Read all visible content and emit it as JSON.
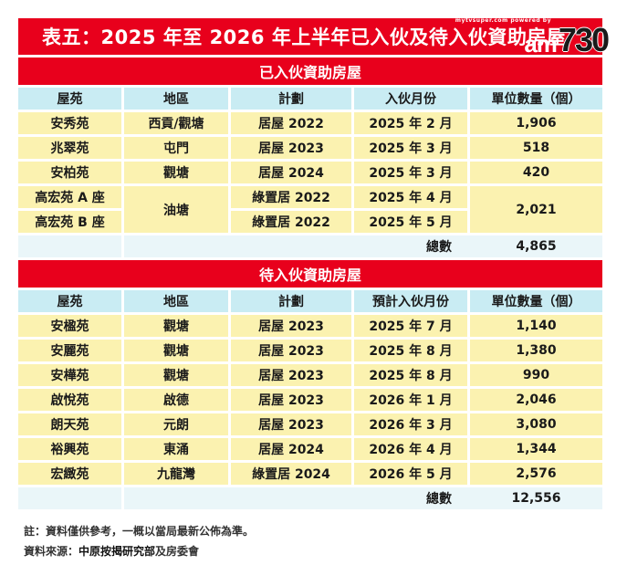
{
  "title": "表五：2025 年至 2026 年上半年已入伙及待入伙資助房屋",
  "logo": {
    "tagline": "mytvsuper.com  powered by",
    "brand_left": "am",
    "brand_right": "730"
  },
  "section1": {
    "heading": "已入伙資助房屋",
    "headers": [
      "屋苑",
      "地區",
      "計劃",
      "入伙月份",
      "單位數量（個）"
    ],
    "rows": [
      {
        "estate": "安秀苑",
        "district": "西貢/觀塘",
        "scheme": "居屋 2022",
        "month": "2025 年 2 月",
        "units": "1,906"
      },
      {
        "estate": "兆翠苑",
        "district": "屯門",
        "scheme": "居屋 2023",
        "month": "2025 年 3 月",
        "units": "518"
      },
      {
        "estate": "安柏苑",
        "district": "觀塘",
        "scheme": "居屋 2024",
        "month": "2025 年 3 月",
        "units": "420"
      },
      {
        "estate": "高宏苑 A 座",
        "scheme": "綠置居 2022",
        "month": "2025 年 4 月"
      },
      {
        "estate": "高宏苑 B 座",
        "scheme": "綠置居 2022",
        "month": "2025 年 5 月"
      }
    ],
    "merged_district": "油塘",
    "merged_units": "2,021",
    "total_label": "總數",
    "total_value": "4,865"
  },
  "section2": {
    "heading": "待入伙資助房屋",
    "headers": [
      "屋苑",
      "地區",
      "計劃",
      "預計入伙月份",
      "單位數量（個）"
    ],
    "rows": [
      {
        "estate": "安楹苑",
        "district": "觀塘",
        "scheme": "居屋 2023",
        "month": "2025 年 7 月",
        "units": "1,140"
      },
      {
        "estate": "安麗苑",
        "district": "觀塘",
        "scheme": "居屋 2023",
        "month": "2025 年 8 月",
        "units": "1,380"
      },
      {
        "estate": "安樺苑",
        "district": "觀塘",
        "scheme": "居屋 2023",
        "month": "2025 年 8 月",
        "units": "990"
      },
      {
        "estate": "啟悅苑",
        "district": "啟德",
        "scheme": "居屋 2023",
        "month": "2026 年 1 月",
        "units": "2,046"
      },
      {
        "estate": "朗天苑",
        "district": "元朗",
        "scheme": "居屋 2023",
        "month": "2026 年 3 月",
        "units": "3,080"
      },
      {
        "estate": "裕興苑",
        "district": "東涌",
        "scheme": "居屋 2024",
        "month": "2026 年 4 月",
        "units": "1,344"
      },
      {
        "estate": "宏緻苑",
        "district": "九龍灣",
        "scheme": "綠置居 2024",
        "month": "2026 年 5 月",
        "units": "2,576"
      }
    ],
    "total_label": "總數",
    "total_value": "12,556"
  },
  "notes": {
    "note": "註：資料僅供參考，一概以當局最新公佈為準。",
    "source_prefix": "資料來源：",
    "source_bold": "中原按揭研究部",
    "source_suffix": "及房委會"
  }
}
